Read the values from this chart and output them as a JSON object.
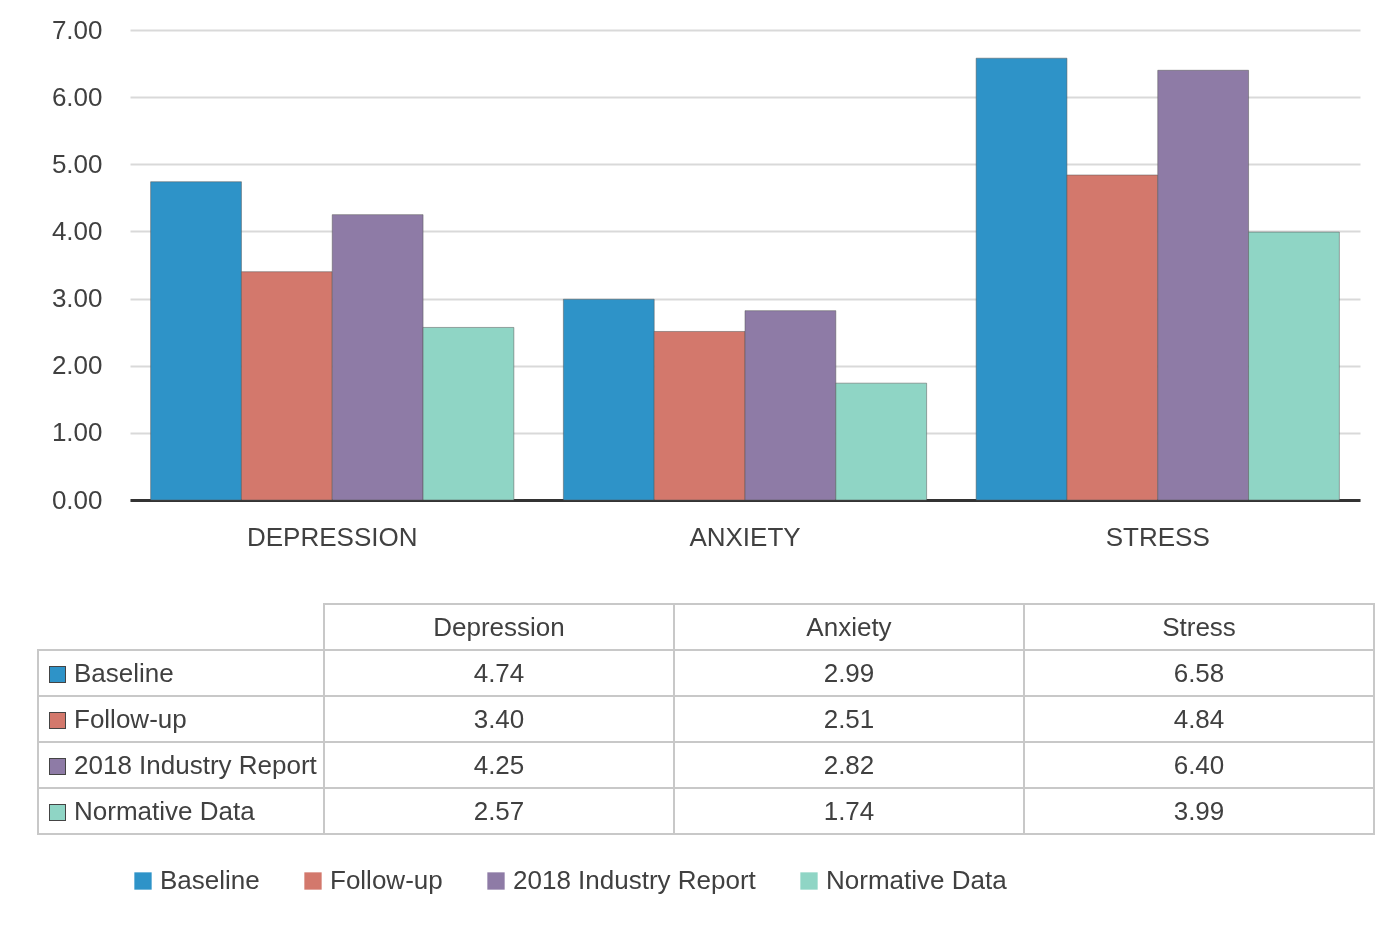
{
  "chart_data": {
    "type": "bar",
    "categories": [
      "DEPRESSION",
      "ANXIETY",
      "STRESS"
    ],
    "series": [
      {
        "name": "Baseline",
        "color": "#2e93c8",
        "values": [
          4.74,
          2.99,
          6.58
        ],
        "value_labels": [
          "4.74",
          "2.99",
          "6.58"
        ]
      },
      {
        "name": "Follow-up",
        "color": "#d3786c",
        "values": [
          3.4,
          2.51,
          4.84
        ],
        "value_labels": [
          "3.40",
          "2.51",
          "4.84"
        ]
      },
      {
        "name": "2018 Industry Report",
        "color": "#8e7ba6",
        "values": [
          4.25,
          2.82,
          6.4
        ],
        "value_labels": [
          "4.25",
          "2.82",
          "6.40"
        ]
      },
      {
        "name": "Normative Data",
        "color": "#8fd5c5",
        "values": [
          2.57,
          1.74,
          3.99
        ],
        "value_labels": [
          "2.57",
          "1.74",
          "3.99"
        ]
      }
    ],
    "ylim": [
      0,
      7
    ],
    "yticks": [
      {
        "value": 0,
        "label": "0.00"
      },
      {
        "value": 1,
        "label": "1.00"
      },
      {
        "value": 2,
        "label": "2.00"
      },
      {
        "value": 3,
        "label": "3.00"
      },
      {
        "value": 4,
        "label": "4.00"
      },
      {
        "value": 5,
        "label": "5.00"
      },
      {
        "value": 6,
        "label": "6.00"
      },
      {
        "value": 7,
        "label": "7.00"
      }
    ],
    "grid": "y",
    "legend": "bottom",
    "annotations": [
      "Depression",
      "Anxiety",
      "Stress"
    ]
  }
}
